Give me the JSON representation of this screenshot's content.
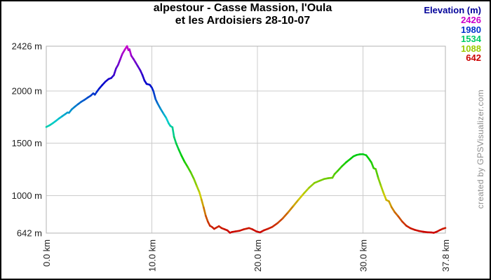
{
  "header": {
    "title_line1": "alpestour - Casse Massion, l'Oula",
    "title_line2": "et les Ardoisiers 28-10-07"
  },
  "watermark": "created by GPSVisualizer.com",
  "legend": {
    "title": "Elevation (m)",
    "title_color": "#000099",
    "entries": [
      {
        "label": "2426",
        "color": "#cc00cc"
      },
      {
        "label": "1980",
        "color": "#0033cc"
      },
      {
        "label": "1534",
        "color": "#00cc66"
      },
      {
        "label": "1088",
        "color": "#99cc00"
      },
      {
        "label": "642",
        "color": "#cc0000"
      }
    ]
  },
  "chart_data": {
    "type": "line",
    "title": "alpestour - Casse Massion, l'Oula et les Ardoisiers 28-10-07",
    "xlabel": "",
    "ylabel": "",
    "xlim": [
      0,
      37.8
    ],
    "ylim": [
      642,
      2426
    ],
    "grid": true,
    "legend_position": "top-right",
    "xticks": [
      {
        "value": 0,
        "label": "0.0 km"
      },
      {
        "value": 10,
        "label": "10.0 km"
      },
      {
        "value": 20,
        "label": "20.0 km"
      },
      {
        "value": 30,
        "label": "30.0 km"
      },
      {
        "value": 37.8,
        "label": "37.8 km"
      }
    ],
    "yticks": [
      {
        "value": 2426,
        "label": "2426 m"
      },
      {
        "value": 2000,
        "label": "2000 m"
      },
      {
        "value": 1500,
        "label": "1500 m"
      },
      {
        "value": 1000,
        "label": "1000 m"
      },
      {
        "value": 642,
        "label": "642 m"
      }
    ],
    "color_mapping": {
      "type": "elevation-hue",
      "min": 642,
      "max": 2426,
      "hue_min": 0,
      "hue_max": 300,
      "saturation": 100,
      "lightness": 40
    },
    "points": [
      [
        0,
        1655
      ],
      [
        0.3,
        1670
      ],
      [
        0.6,
        1690
      ],
      [
        0.9,
        1712
      ],
      [
        1.2,
        1736
      ],
      [
        1.5,
        1757
      ],
      [
        1.8,
        1778
      ],
      [
        2.0,
        1793
      ],
      [
        2.15,
        1790
      ],
      [
        2.4,
        1822
      ],
      [
        2.7,
        1848
      ],
      [
        3.0,
        1872
      ],
      [
        3.3,
        1895
      ],
      [
        3.6,
        1913
      ],
      [
        3.9,
        1934
      ],
      [
        4.2,
        1953
      ],
      [
        4.45,
        1976
      ],
      [
        4.6,
        1963
      ],
      [
        4.8,
        1993
      ],
      [
        5.0,
        2020
      ],
      [
        5.3,
        2055
      ],
      [
        5.6,
        2088
      ],
      [
        5.9,
        2113
      ],
      [
        6.15,
        2122
      ],
      [
        6.4,
        2150
      ],
      [
        6.6,
        2212
      ],
      [
        6.8,
        2248
      ],
      [
        7.0,
        2300
      ],
      [
        7.2,
        2352
      ],
      [
        7.45,
        2395
      ],
      [
        7.65,
        2426
      ],
      [
        7.78,
        2388
      ],
      [
        7.88,
        2396
      ],
      [
        8.05,
        2335
      ],
      [
        8.25,
        2305
      ],
      [
        8.45,
        2272
      ],
      [
        8.65,
        2238
      ],
      [
        8.9,
        2196
      ],
      [
        9.1,
        2152
      ],
      [
        9.3,
        2098
      ],
      [
        9.5,
        2066
      ],
      [
        9.8,
        2058
      ],
      [
        10.0,
        2030
      ],
      [
        10.15,
        1995
      ],
      [
        10.35,
        1920
      ],
      [
        10.55,
        1878
      ],
      [
        10.8,
        1832
      ],
      [
        11.1,
        1782
      ],
      [
        11.35,
        1742
      ],
      [
        11.6,
        1688
      ],
      [
        11.75,
        1665
      ],
      [
        11.95,
        1652
      ],
      [
        12.1,
        1560
      ],
      [
        12.3,
        1498
      ],
      [
        12.55,
        1438
      ],
      [
        12.8,
        1382
      ],
      [
        13.1,
        1322
      ],
      [
        13.4,
        1272
      ],
      [
        13.7,
        1218
      ],
      [
        14.0,
        1155
      ],
      [
        14.25,
        1092
      ],
      [
        14.5,
        1032
      ],
      [
        14.7,
        962
      ],
      [
        14.9,
        888
      ],
      [
        15.1,
        808
      ],
      [
        15.3,
        752
      ],
      [
        15.5,
        712
      ],
      [
        15.7,
        700
      ],
      [
        15.9,
        682
      ],
      [
        16.1,
        694
      ],
      [
        16.35,
        708
      ],
      [
        16.6,
        690
      ],
      [
        16.9,
        678
      ],
      [
        17.15,
        668
      ],
      [
        17.4,
        645
      ],
      [
        17.6,
        653
      ],
      [
        17.9,
        658
      ],
      [
        18.3,
        664
      ],
      [
        18.7,
        678
      ],
      [
        19.2,
        690
      ],
      [
        19.5,
        679
      ],
      [
        19.9,
        658
      ],
      [
        20.25,
        649
      ],
      [
        20.6,
        668
      ],
      [
        21.0,
        683
      ],
      [
        21.4,
        701
      ],
      [
        21.9,
        737
      ],
      [
        22.4,
        783
      ],
      [
        22.9,
        840
      ],
      [
        23.4,
        901
      ],
      [
        23.9,
        962
      ],
      [
        24.4,
        1021
      ],
      [
        24.9,
        1076
      ],
      [
        25.4,
        1121
      ],
      [
        25.9,
        1142
      ],
      [
        26.3,
        1158
      ],
      [
        26.7,
        1166
      ],
      [
        27.1,
        1170
      ],
      [
        27.3,
        1205
      ],
      [
        27.6,
        1236
      ],
      [
        28.0,
        1280
      ],
      [
        28.4,
        1318
      ],
      [
        28.8,
        1350
      ],
      [
        29.1,
        1375
      ],
      [
        29.4,
        1388
      ],
      [
        29.7,
        1394
      ],
      [
        30.0,
        1395
      ],
      [
        30.3,
        1385
      ],
      [
        30.55,
        1352
      ],
      [
        30.8,
        1315
      ],
      [
        31.0,
        1262
      ],
      [
        31.2,
        1253
      ],
      [
        31.45,
        1165
      ],
      [
        31.7,
        1092
      ],
      [
        31.95,
        1022
      ],
      [
        32.2,
        958
      ],
      [
        32.45,
        946
      ],
      [
        32.7,
        890
      ],
      [
        33.0,
        842
      ],
      [
        33.35,
        800
      ],
      [
        33.7,
        753
      ],
      [
        34.1,
        712
      ],
      [
        34.5,
        688
      ],
      [
        34.9,
        673
      ],
      [
        35.3,
        662
      ],
      [
        35.7,
        655
      ],
      [
        36.1,
        650
      ],
      [
        36.45,
        648
      ],
      [
        36.7,
        645
      ],
      [
        37.0,
        656
      ],
      [
        37.3,
        672
      ],
      [
        37.55,
        683
      ],
      [
        37.8,
        691
      ]
    ]
  }
}
